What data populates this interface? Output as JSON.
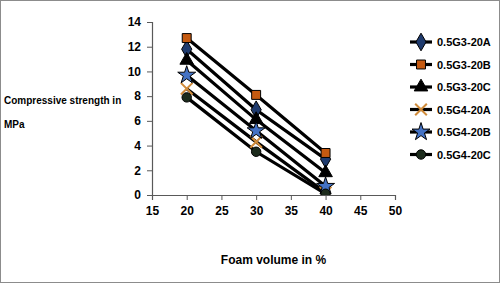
{
  "chart_data": {
    "type": "line",
    "x_label": "Foam volume in %",
    "y_label": "Compressive strength in MPa",
    "x": [
      20,
      30,
      40
    ],
    "xlim": [
      15,
      50
    ],
    "xticks": [
      15,
      20,
      25,
      30,
      35,
      40,
      45,
      50
    ],
    "ylim": [
      0,
      14
    ],
    "yticks": [
      0,
      2,
      4,
      6,
      8,
      10,
      12,
      14
    ],
    "grid": false,
    "legend": "right",
    "series": [
      {
        "name": "0.5G3-20A",
        "color": "#1f3b6e",
        "marker": "diamond",
        "values": [
          11.8,
          6.9,
          2.9
        ]
      },
      {
        "name": "0.5G3-20B",
        "color": "#c55a11",
        "marker": "square",
        "values": [
          12.7,
          8.1,
          3.4
        ]
      },
      {
        "name": "0.5G3-20C",
        "color": "#000000",
        "marker": "triangle",
        "values": [
          10.9,
          6.1,
          1.8
        ]
      },
      {
        "name": "0.5G4-20A",
        "color": "#d08b3a",
        "marker": "x",
        "values": [
          8.6,
          4.3,
          0.2
        ]
      },
      {
        "name": "0.5G4-20B",
        "color": "#4472c4",
        "marker": "star",
        "values": [
          9.7,
          5.2,
          0.7
        ]
      },
      {
        "name": "0.5G4-20C",
        "color": "#1c2b1c",
        "marker": "circle",
        "values": [
          7.9,
          3.5,
          0.1
        ]
      }
    ]
  }
}
